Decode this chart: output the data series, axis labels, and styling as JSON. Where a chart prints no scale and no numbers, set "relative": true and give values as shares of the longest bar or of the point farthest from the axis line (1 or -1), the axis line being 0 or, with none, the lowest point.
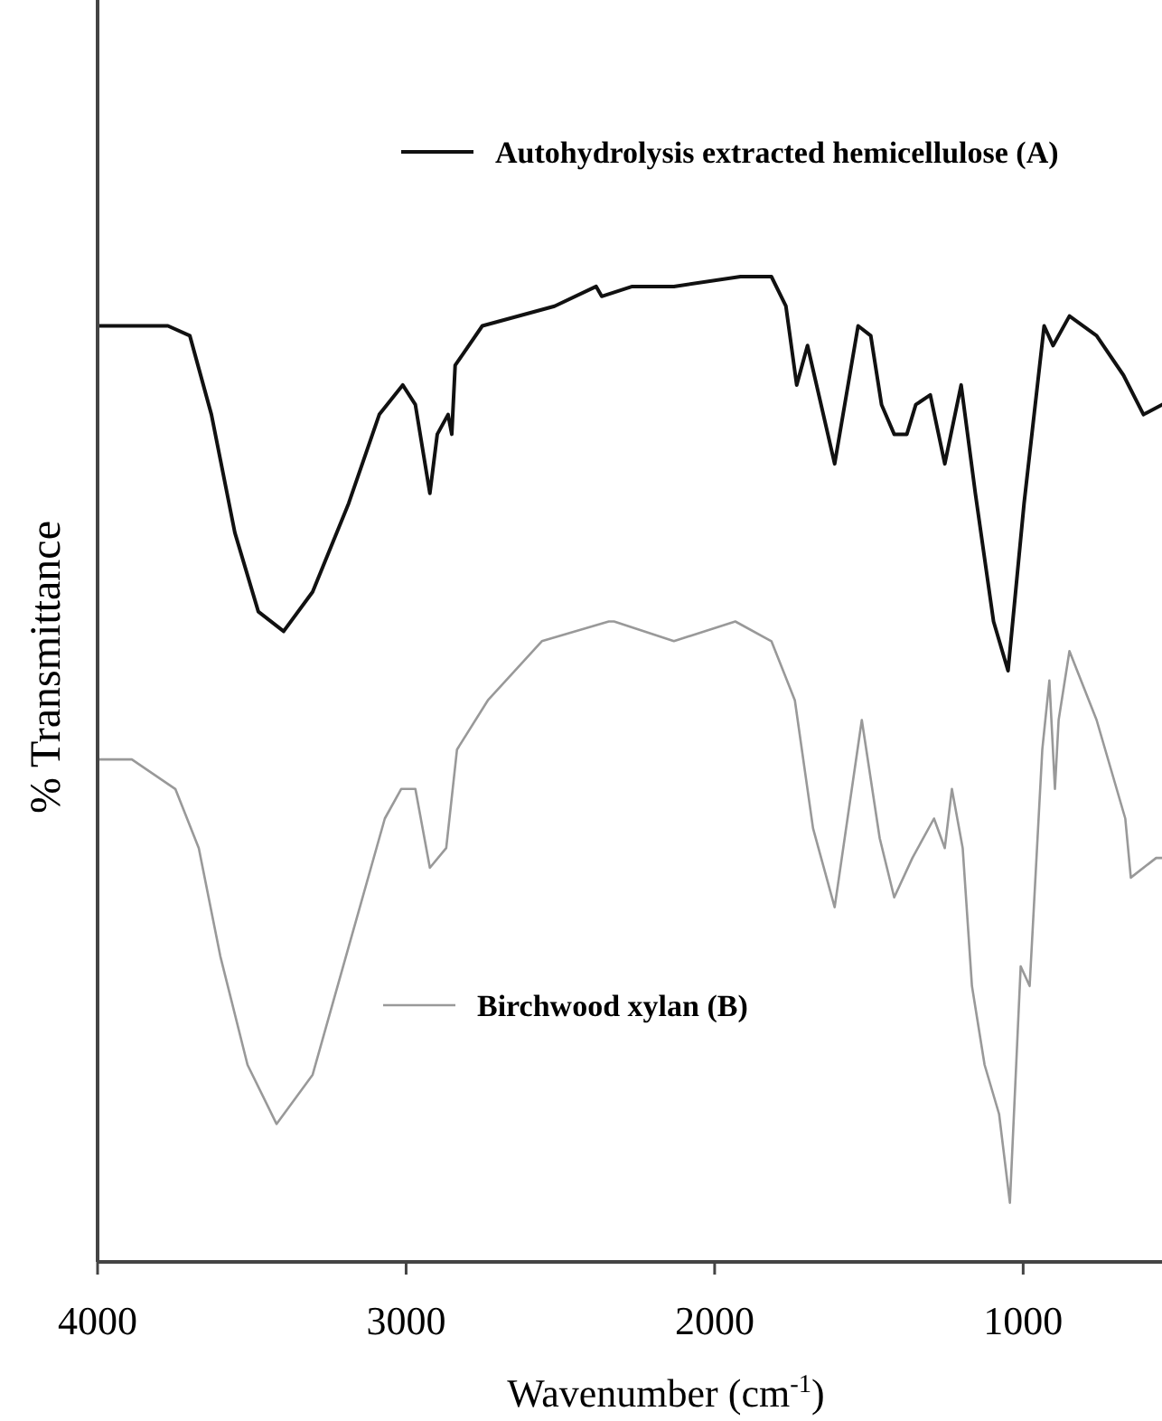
{
  "chart_data": {
    "type": "line",
    "xlabel": "Wavenumber (cm$^{-1}$)",
    "ylabel": "% Transmittance",
    "relative": true,
    "xlim": [
      4000,
      550
    ],
    "xticks": [
      4000,
      3000,
      2000,
      1000
    ],
    "grid": false,
    "legend": "top right",
    "marker": "none",
    "line_style": "solid",
    "series": [
      {
        "name": "Autohydrolysis extracted hemicellulose (A)",
        "color": "#111111",
        "x": [
          4000,
          3772,
          3701,
          3631,
          3555,
          3479,
          3397,
          3303,
          3186,
          3087,
          3011,
          2970,
          2923,
          2899,
          2864,
          2852,
          2841,
          2753,
          2519,
          2384,
          2366,
          2267,
          2132,
          1916,
          1816,
          1769,
          1734,
          1699,
          1611,
          1535,
          1494,
          1459,
          1418,
          1377,
          1348,
          1301,
          1254,
          1201,
          1155,
          1096,
          1049,
          997,
          932,
          903,
          850,
          762,
          675,
          610,
          550
        ],
        "values": [
          0.95,
          0.95,
          0.94,
          0.86,
          0.74,
          0.66,
          0.64,
          0.68,
          0.77,
          0.86,
          0.89,
          0.87,
          0.78,
          0.84,
          0.86,
          0.84,
          0.91,
          0.95,
          0.97,
          0.99,
          0.98,
          0.99,
          0.99,
          1.0,
          1.0,
          0.97,
          0.89,
          0.93,
          0.81,
          0.95,
          0.94,
          0.87,
          0.84,
          0.84,
          0.87,
          0.88,
          0.81,
          0.89,
          0.78,
          0.65,
          0.6,
          0.77,
          0.95,
          0.93,
          0.96,
          0.94,
          0.9,
          0.86,
          0.87
        ]
      },
      {
        "name": "Birchwood xylan (B)",
        "color": "#999999",
        "x": [
          4000,
          3889,
          3748,
          3672,
          3602,
          3514,
          3420,
          3303,
          3186,
          3069,
          3016,
          2970,
          2923,
          2870,
          2835,
          2735,
          2560,
          2343,
          2326,
          2132,
          1933,
          1816,
          1740,
          1681,
          1611,
          1523,
          1465,
          1418,
          1359,
          1289,
          1254,
          1231,
          1196,
          1166,
          1125,
          1078,
          1043,
          1008,
          979,
          938,
          915,
          897,
          885,
          850,
          762,
          669,
          651,
          569,
          550
        ],
        "values": [
          0.51,
          0.51,
          0.48,
          0.42,
          0.31,
          0.2,
          0.14,
          0.19,
          0.32,
          0.45,
          0.48,
          0.48,
          0.4,
          0.42,
          0.52,
          0.57,
          0.63,
          0.65,
          0.65,
          0.63,
          0.65,
          0.63,
          0.57,
          0.44,
          0.36,
          0.55,
          0.43,
          0.37,
          0.41,
          0.45,
          0.42,
          0.48,
          0.42,
          0.28,
          0.2,
          0.15,
          0.06,
          0.3,
          0.28,
          0.52,
          0.59,
          0.48,
          0.55,
          0.62,
          0.55,
          0.45,
          0.39,
          0.41,
          0.41
        ]
      }
    ]
  }
}
